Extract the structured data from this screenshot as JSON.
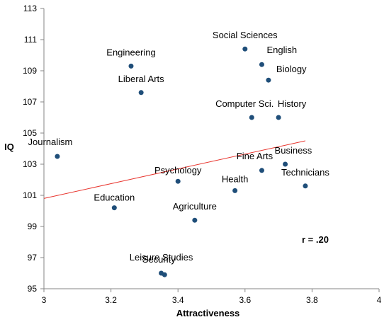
{
  "chart_data": {
    "type": "scatter",
    "title": "",
    "xlabel": "Attractiveness",
    "ylabel": "IQ",
    "xlim": [
      3,
      4
    ],
    "ylim": [
      95,
      113
    ],
    "x_ticks": [
      3,
      3.2,
      3.4,
      3.6,
      3.8,
      4
    ],
    "x_tick_labels": [
      "3",
      "3.2",
      "3.4",
      "3.6",
      "3.8",
      "4"
    ],
    "y_ticks": [
      95,
      97,
      99,
      101,
      103,
      105,
      107,
      109,
      111,
      113
    ],
    "y_tick_labels": [
      "95",
      "97",
      "99",
      "101",
      "103",
      "105",
      "107",
      "109",
      "111",
      "113"
    ],
    "grid": false,
    "legend": "none",
    "marker_color": "#1f4e79",
    "trendline_color": "#e8352e",
    "annotation": "r = .20",
    "trendline": {
      "x": [
        3,
        3.78
      ],
      "y": [
        100.8,
        104.5
      ]
    },
    "points": [
      {
        "label": "Social Sciences",
        "x": 3.6,
        "y": 110.4
      },
      {
        "label": "English",
        "x": 3.65,
        "y": 109.4
      },
      {
        "label": "Biology",
        "x": 3.67,
        "y": 108.4
      },
      {
        "label": "Engineering",
        "x": 3.26,
        "y": 109.3
      },
      {
        "label": "Liberal Arts",
        "x": 3.29,
        "y": 107.6
      },
      {
        "label": "Computer Sci.",
        "x": 3.62,
        "y": 106.0
      },
      {
        "label": "History",
        "x": 3.7,
        "y": 106.0
      },
      {
        "label": "Journalism",
        "x": 3.04,
        "y": 103.5
      },
      {
        "label": "Business",
        "x": 3.72,
        "y": 103.0
      },
      {
        "label": "Fine Arts",
        "x": 3.65,
        "y": 102.6
      },
      {
        "label": "Technicians",
        "x": 3.78,
        "y": 101.6
      },
      {
        "label": "Psychology",
        "x": 3.4,
        "y": 101.9
      },
      {
        "label": "Health",
        "x": 3.57,
        "y": 101.3
      },
      {
        "label": "Education",
        "x": 3.21,
        "y": 100.2
      },
      {
        "label": "Agriculture",
        "x": 3.45,
        "y": 99.4
      },
      {
        "label": "Leisure Studies",
        "x": 3.35,
        "y": 96.0
      },
      {
        "label": "Security",
        "x": 3.36,
        "y": 95.9
      }
    ]
  }
}
